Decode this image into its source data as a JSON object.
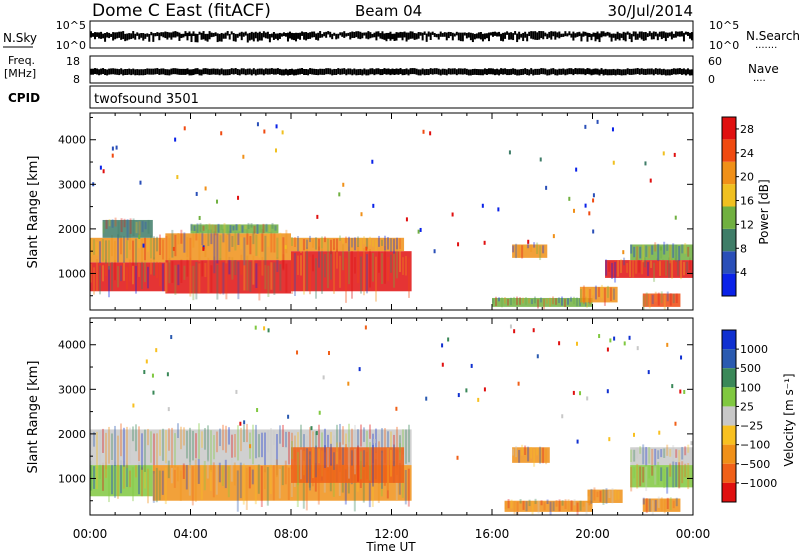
{
  "header": {
    "title": "Dome C East (fitACF)",
    "beam": "Beam 04",
    "date": "30/Jul/2014"
  },
  "nsky_panel": {
    "left_label": "N.Sky",
    "left_ticks": [
      "10^5",
      "10^0"
    ],
    "right_ticks": [
      "10^5",
      "10^0"
    ],
    "right_label": "N.Search",
    "right_label_dots": "......."
  },
  "freq_panel": {
    "left_label_line1": "Freq.",
    "left_label_line2": "[MHz]",
    "left_ticks": [
      "18",
      "8"
    ],
    "right_ticks": [
      "60",
      "0"
    ],
    "right_label": "Nave",
    "right_label_dots": "...."
  },
  "cpid": {
    "label": "CPID",
    "value": "twofsound 3501"
  },
  "chart_data": [
    {
      "type": "heatmap",
      "title": "",
      "xlabel": "Time UT",
      "ylabel": "Slant Range [km]",
      "xlim": [
        "00:00",
        "24:00"
      ],
      "ylim": [
        180,
        4600
      ],
      "x_tick_labels": [
        "00:00",
        "04:00",
        "08:00",
        "12:00",
        "16:00",
        "20:00",
        "00:00"
      ],
      "y_ticks": [
        1000,
        2000,
        3000,
        4000
      ],
      "colorbar": {
        "label": "Power [dB]",
        "ticks": [
          4,
          8,
          12,
          16,
          20,
          24,
          28
        ],
        "range": [
          0,
          30
        ],
        "colors": [
          "#0a22e8",
          "#2a4fb8",
          "#3f7d68",
          "#70b040",
          "#f0c020",
          "#f09018",
          "#f04a10",
          "#e01010"
        ]
      },
      "patches": [
        {
          "t0": 0.0,
          "t1": 3.0,
          "r0": 600,
          "r1": 1250,
          "value": 28
        },
        {
          "t0": 0.0,
          "t1": 3.0,
          "r0": 1250,
          "r1": 1800,
          "value": 22
        },
        {
          "t0": 0.5,
          "t1": 2.5,
          "r0": 1800,
          "r1": 2200,
          "value": 10
        },
        {
          "t0": 3.0,
          "t1": 8.0,
          "r0": 550,
          "r1": 1300,
          "value": 28
        },
        {
          "t0": 3.0,
          "t1": 8.0,
          "r0": 1300,
          "r1": 1900,
          "value": 20
        },
        {
          "t0": 4.0,
          "t1": 7.5,
          "r0": 1900,
          "r1": 2100,
          "value": 12
        },
        {
          "t0": 8.0,
          "t1": 12.8,
          "r0": 600,
          "r1": 1500,
          "value": 28
        },
        {
          "t0": 8.0,
          "t1": 12.5,
          "r0": 1500,
          "r1": 1800,
          "value": 20
        },
        {
          "t0": 16.8,
          "t1": 18.2,
          "r0": 1350,
          "r1": 1650,
          "value": 22
        },
        {
          "t0": 16.0,
          "t1": 20.0,
          "r0": 250,
          "r1": 450,
          "value": 12
        },
        {
          "t0": 19.5,
          "t1": 21.0,
          "r0": 350,
          "r1": 700,
          "value": 20
        },
        {
          "t0": 20.5,
          "t1": 24.0,
          "r0": 900,
          "r1": 1300,
          "value": 28
        },
        {
          "t0": 21.5,
          "t1": 24.0,
          "r0": 1300,
          "r1": 1650,
          "value": 12
        },
        {
          "t0": 22.0,
          "t1": 23.5,
          "r0": 250,
          "r1": 550,
          "value": 24
        }
      ]
    },
    {
      "type": "heatmap",
      "title": "",
      "xlabel": "Time UT",
      "ylabel": "Slant Range [km]",
      "xlim": [
        "00:00",
        "24:00"
      ],
      "ylim": [
        180,
        4600
      ],
      "x_tick_labels": [
        "00:00",
        "04:00",
        "08:00",
        "12:00",
        "16:00",
        "20:00",
        "00:00"
      ],
      "y_ticks": [
        1000,
        2000,
        3000,
        4000
      ],
      "colorbar": {
        "label": "Velocity [m s⁻¹]",
        "ticks": [
          "1000",
          "500",
          "100",
          "25",
          "−25",
          "−100",
          "−500",
          "−1000"
        ],
        "colors": [
          "#1030d0",
          "#2a5ab0",
          "#3a8858",
          "#80c840",
          "#c8c8c8",
          "#f8c020",
          "#f09018",
          "#f06018",
          "#e01010"
        ]
      },
      "patches": [
        {
          "t0": 0.0,
          "t1": 2.5,
          "r0": 600,
          "r1": 1300,
          "value": "100"
        },
        {
          "t0": 0.0,
          "t1": 12.8,
          "r0": 1300,
          "r1": 2100,
          "value": "25"
        },
        {
          "t0": 2.5,
          "t1": 12.8,
          "r0": 500,
          "r1": 1300,
          "value": "−100"
        },
        {
          "t0": 8.0,
          "t1": 12.5,
          "r0": 900,
          "r1": 1700,
          "value": "−500"
        },
        {
          "t0": 16.8,
          "t1": 18.3,
          "r0": 1350,
          "r1": 1700,
          "value": "−100"
        },
        {
          "t0": 16.5,
          "t1": 20.0,
          "r0": 250,
          "r1": 500,
          "value": "−100"
        },
        {
          "t0": 19.8,
          "t1": 21.2,
          "r0": 450,
          "r1": 750,
          "value": "−100"
        },
        {
          "t0": 21.5,
          "t1": 24.0,
          "r0": 1300,
          "r1": 1700,
          "value": "25"
        },
        {
          "t0": 21.5,
          "t1": 24.0,
          "r0": 800,
          "r1": 1300,
          "value": "100"
        },
        {
          "t0": 22.0,
          "t1": 23.5,
          "r0": 250,
          "r1": 550,
          "value": "−100"
        }
      ]
    }
  ]
}
